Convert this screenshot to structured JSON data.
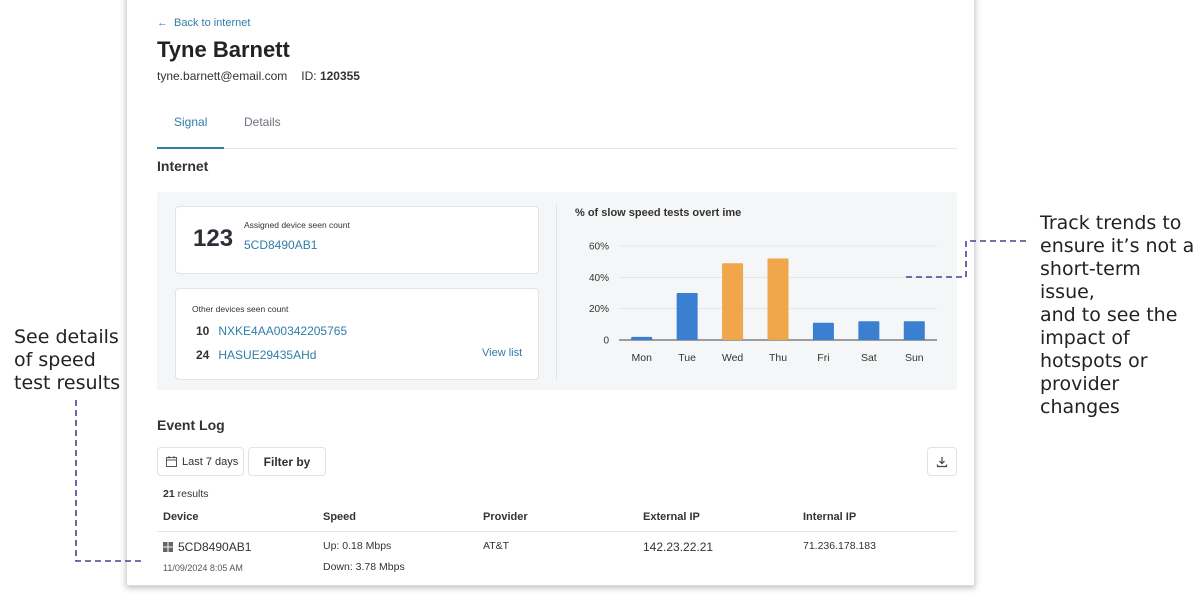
{
  "back_link": "Back to internet",
  "user": {
    "name": "Tyne Barnett",
    "email": "tyne.barnett@email.com",
    "id_label": "ID:",
    "id_value": "120355"
  },
  "tabs": [
    {
      "label": "Signal",
      "active": true
    },
    {
      "label": "Details",
      "active": false
    }
  ],
  "internet": {
    "title": "Internet",
    "assigned": {
      "count": "123",
      "label": "Assigned device seen count",
      "device": "5CD8490AB1"
    },
    "other": {
      "label": "Other devices seen count",
      "items": [
        {
          "count": "10",
          "device": "NXKE4AA00342205765"
        },
        {
          "count": "24",
          "device": "HASUE29435AHd"
        }
      ],
      "view_list": "View list"
    }
  },
  "chart_data": {
    "type": "bar",
    "title": "% of slow speed tests overt ime",
    "categories": [
      "Mon",
      "Tue",
      "Wed",
      "Thu",
      "Fri",
      "Sat",
      "Sun"
    ],
    "values": [
      2,
      30,
      49,
      52,
      11,
      12,
      12
    ],
    "bar_colors": [
      "#3a7fd0",
      "#3a7fd0",
      "#f0a64a",
      "#f0a64a",
      "#3a7fd0",
      "#3a7fd0",
      "#3a7fd0"
    ],
    "yticks": [
      "0",
      "20%",
      "40%",
      "60%"
    ],
    "ylim": [
      0,
      60
    ],
    "grid": true
  },
  "event_log": {
    "title": "Event Log",
    "range_label": "Last 7 days",
    "filter_label": "Filter by",
    "results_count": "21",
    "results_label": "results",
    "columns": [
      "Device",
      "Speed",
      "Provider",
      "External IP",
      "Internal IP"
    ],
    "rows": [
      {
        "device": "5CD8490AB1",
        "timestamp": "11/09/2024 8:05 AM",
        "speed_up": "Up: 0.18 Mbps",
        "speed_down": "Down: 3.78 Mbps",
        "provider": "AT&T",
        "external_ip": "142.23.22.21",
        "internal_ip": "71.236.178.183"
      }
    ]
  },
  "annotations": {
    "left": [
      "See details",
      "of speed",
      "test results"
    ],
    "right": [
      "Track trends to",
      "ensure it’s not a",
      "short-term issue,",
      "and to see the",
      "impact of",
      "hotspots or",
      "provider",
      "changes"
    ]
  },
  "colors": {
    "accent": "#2f7ea8",
    "bar_blue": "#3a7fd0",
    "bar_orange": "#f0a64a",
    "annotation_line": "#4a3f8f"
  }
}
